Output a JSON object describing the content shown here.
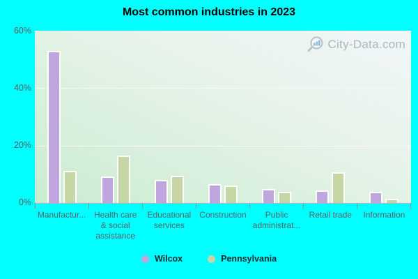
{
  "chart": {
    "watermark_text": "City-Data.com",
    "colors": {
      "page_background": "#00ffff",
      "wilcox_bar": "#bfa6de",
      "pennsylvania_bar": "#c6d6a4",
      "axis_label": "#4e6266",
      "title_text": "#000000",
      "watermark_text": "#a2abb1"
    }
  },
  "chart_data": {
    "type": "bar",
    "title": "Most common industries in 2023",
    "categories": [
      "Manufactur...",
      "Health care & social assistance",
      "Educational services",
      "Construction",
      "Public administrat...",
      "Retail trade",
      "Information"
    ],
    "series": [
      {
        "name": "Wilcox",
        "color": "#bfa6de",
        "values": [
          53,
          9.2,
          8.1,
          6.6,
          4.8,
          4.4,
          4.0
        ]
      },
      {
        "name": "Pennsylvania",
        "color": "#c6d6a4",
        "values": [
          11.2,
          16.5,
          9.4,
          6.1,
          3.8,
          10.8,
          1.4
        ]
      }
    ],
    "xlabel": "",
    "ylabel": "",
    "ylim": [
      0,
      60
    ],
    "y_tick_labels": [
      "60%",
      "40%",
      "20%",
      "0%"
    ],
    "grid": "horizontal",
    "legend_position": "bottom"
  }
}
